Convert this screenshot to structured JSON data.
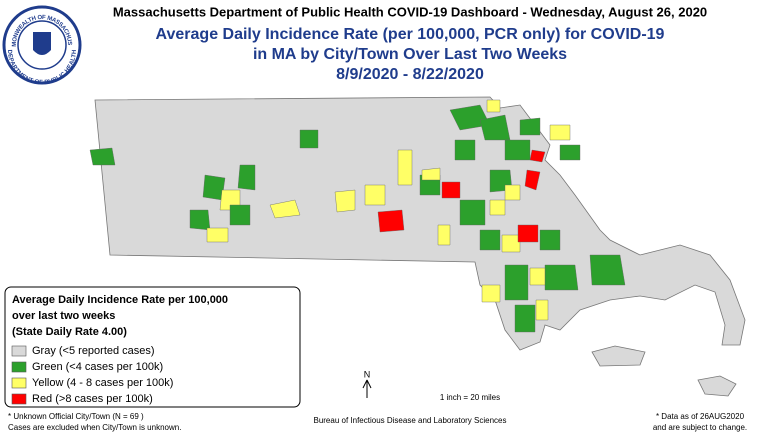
{
  "header": {
    "agency_line": "Massachusetts Department of Public Health COVID-19 Dashboard - Wednesday, August 26, 2020",
    "title_lines": [
      "Average Daily Incidence Rate (per 100,000, PCR only) for COVID-19",
      "in MA by City/Town Over Last Two Weeks",
      "8/9/2020 - 8/22/2020"
    ],
    "seal": {
      "top_text": "COMMONWEALTH OF MASSACHUSETTS",
      "bottom_text": "DEPARTMENT OF PUBLIC HEALTH"
    }
  },
  "legend": {
    "title_lines": [
      "Average Daily Incidence Rate per 100,000",
      "over last two weeks",
      "(State Daily Rate 4.00)"
    ],
    "items": [
      {
        "label": "Gray (<5 reported cases)",
        "color": "#d9d9d9"
      },
      {
        "label": "Green (<4 cases per 100k)",
        "color": "#2ca02c"
      },
      {
        "label": "Yellow (4 - 8 cases per 100k)",
        "color": "#ffff66"
      },
      {
        "label": "Red (>8 cases per 100k)",
        "color": "#ff0000"
      }
    ]
  },
  "compass": "N",
  "scale": "1 inch = 20 miles",
  "footer": {
    "left": [
      "* Unknown Official City/Town (N = 69 )",
      "Cases are excluded when City/Town is unknown."
    ],
    "center": "Bureau of Infectious Disease and Laboratory Sciences",
    "right": [
      "* Data as of 26AUG2020",
      "and are subject to change."
    ]
  }
}
